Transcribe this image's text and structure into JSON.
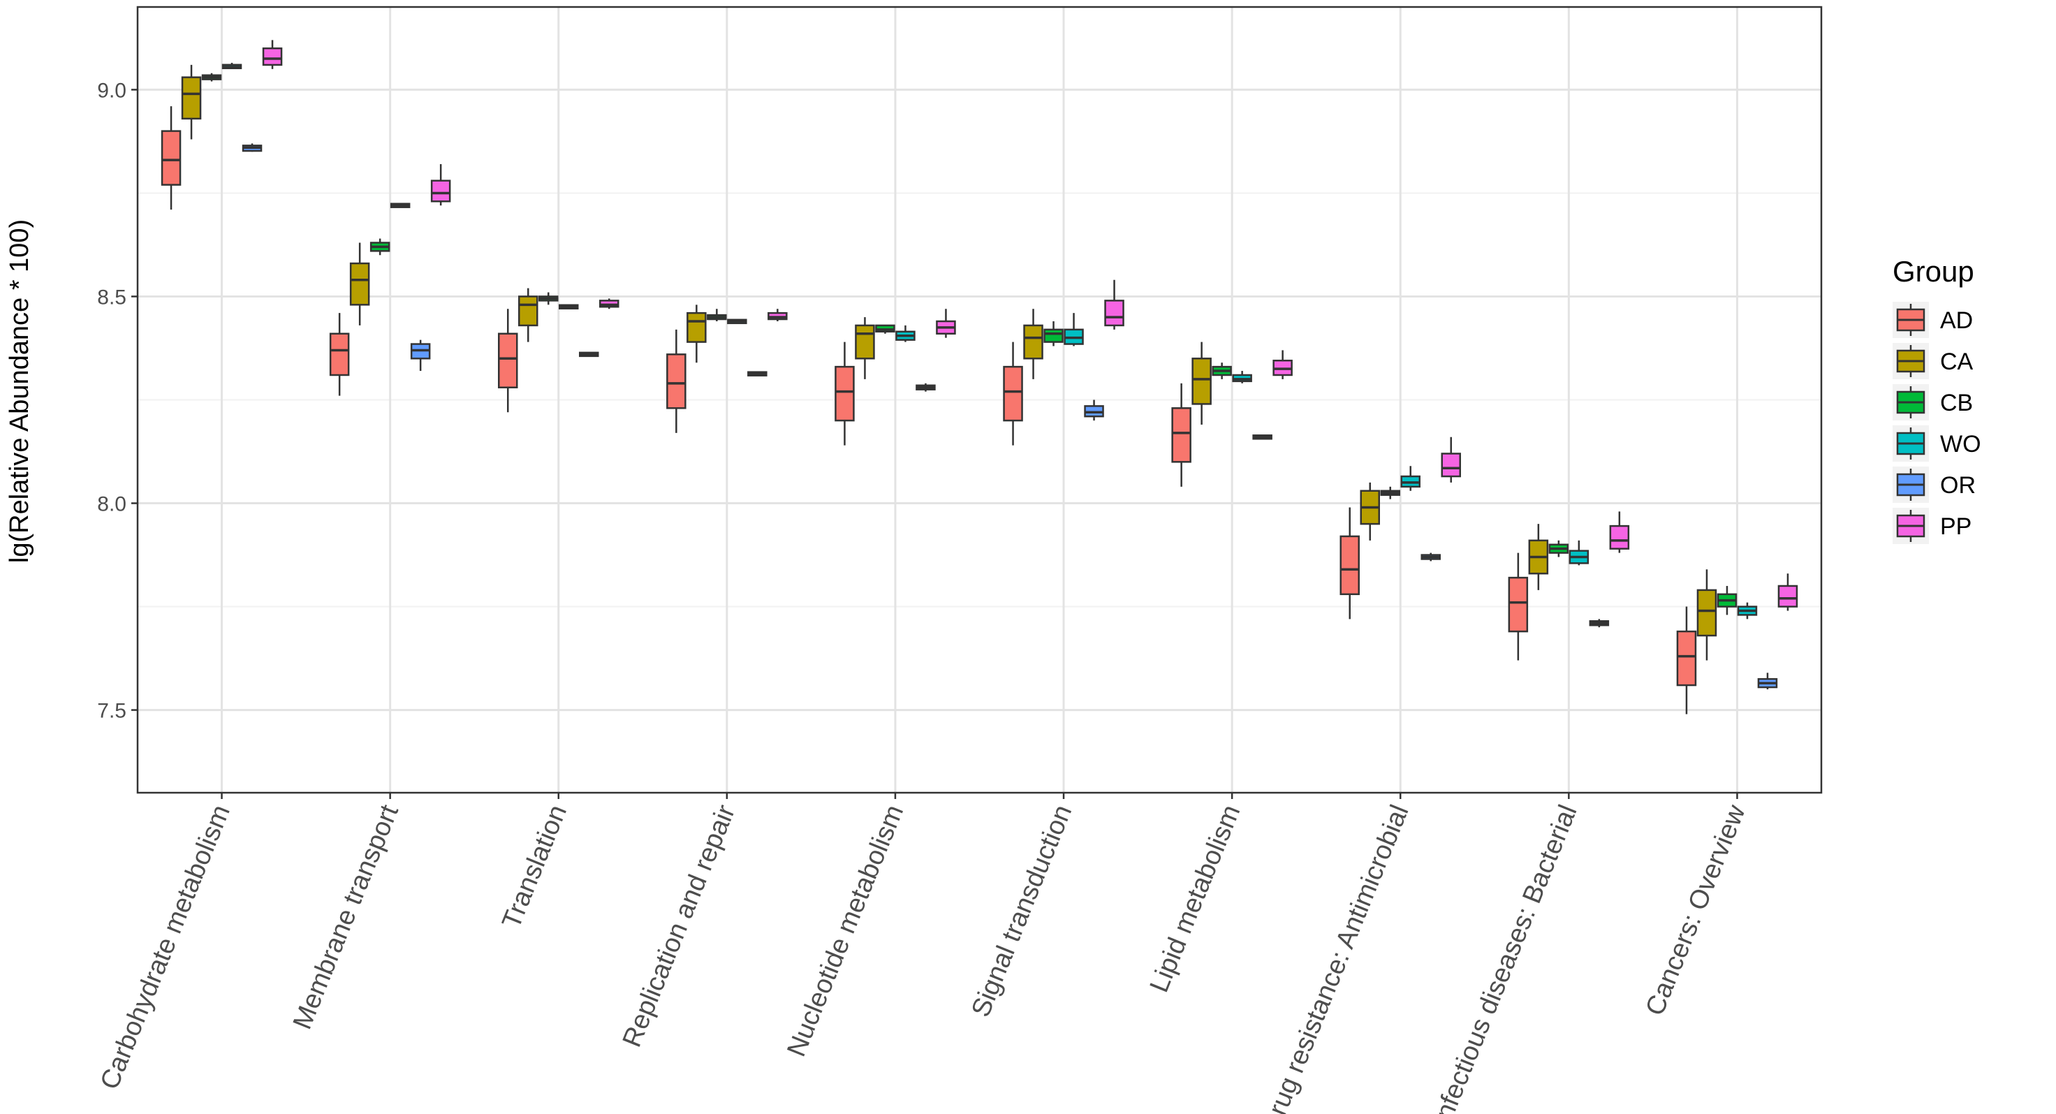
{
  "chart_data": {
    "type": "boxplot",
    "title": "",
    "xlabel": "",
    "ylabel": "lg(Relative Abundance * 100)",
    "ylim": [
      7.3,
      9.2
    ],
    "yticks": [
      7.5,
      8.0,
      8.5,
      9.0
    ],
    "ytick_labels": [
      "7.5",
      "8.0",
      "8.5",
      "9.0"
    ],
    "grid": true,
    "legend": {
      "title": "Group",
      "position": "right"
    },
    "groups": [
      {
        "name": "AD",
        "color": "#F8766D"
      },
      {
        "name": "CA",
        "color": "#B79F00"
      },
      {
        "name": "CB",
        "color": "#00BA38"
      },
      {
        "name": "WO",
        "color": "#00BFC4"
      },
      {
        "name": "OR",
        "color": "#619CFF"
      },
      {
        "name": "PP",
        "color": "#F564E3"
      }
    ],
    "categories": [
      "Carbohydrate metabolism",
      "Membrane transport",
      "Translation",
      "Replication and repair",
      "Nucleotide metabolism",
      "Signal transduction",
      "Lipid metabolism",
      "Drug resistance: Antimicrobial",
      "Infectious diseases: Bacterial",
      "Cancers: Overview"
    ],
    "series": [
      {
        "name": "AD",
        "stats": [
          [
            8.71,
            8.77,
            8.83,
            8.9,
            8.96
          ],
          [
            8.26,
            8.31,
            8.37,
            8.41,
            8.46
          ],
          [
            8.22,
            8.28,
            8.35,
            8.41,
            8.47
          ],
          [
            8.17,
            8.23,
            8.29,
            8.36,
            8.42
          ],
          [
            8.14,
            8.2,
            8.27,
            8.33,
            8.39
          ],
          [
            8.14,
            8.2,
            8.27,
            8.33,
            8.39
          ],
          [
            8.04,
            8.1,
            8.17,
            8.23,
            8.29
          ],
          [
            7.72,
            7.78,
            7.84,
            7.92,
            7.99
          ],
          [
            7.62,
            7.69,
            7.76,
            7.82,
            7.88
          ],
          [
            7.49,
            7.56,
            7.63,
            7.69,
            7.75
          ]
        ]
      },
      {
        "name": "CA",
        "stats": [
          [
            8.88,
            8.93,
            8.99,
            9.03,
            9.06
          ],
          [
            8.43,
            8.48,
            8.54,
            8.58,
            8.63
          ],
          [
            8.39,
            8.43,
            8.48,
            8.5,
            8.52
          ],
          [
            8.34,
            8.39,
            8.44,
            8.46,
            8.48
          ],
          [
            8.3,
            8.35,
            8.41,
            8.43,
            8.45
          ],
          [
            8.3,
            8.35,
            8.4,
            8.43,
            8.47
          ],
          [
            8.19,
            8.24,
            8.3,
            8.35,
            8.39
          ],
          [
            7.91,
            7.95,
            7.99,
            8.03,
            8.05
          ],
          [
            7.79,
            7.83,
            7.87,
            7.91,
            7.95
          ],
          [
            7.62,
            7.68,
            7.74,
            7.79,
            7.84
          ]
        ]
      },
      {
        "name": "CB",
        "stats": [
          [
            9.02,
            9.025,
            9.03,
            9.035,
            9.04
          ],
          [
            8.6,
            8.61,
            8.62,
            8.63,
            8.64
          ],
          [
            8.48,
            8.49,
            8.495,
            8.5,
            8.51
          ],
          [
            8.44,
            8.445,
            8.45,
            8.455,
            8.47
          ],
          [
            8.41,
            8.415,
            8.42,
            8.43,
            8.43
          ],
          [
            8.38,
            8.39,
            8.41,
            8.42,
            8.44
          ],
          [
            8.3,
            8.31,
            8.32,
            8.33,
            8.34
          ],
          [
            8.01,
            8.02,
            8.025,
            8.03,
            8.04
          ],
          [
            7.87,
            7.88,
            7.89,
            7.9,
            7.91
          ],
          [
            7.73,
            7.75,
            7.765,
            7.78,
            7.8
          ]
        ]
      },
      {
        "name": "WO",
        "stats": [
          [
            9.05,
            9.052,
            9.055,
            9.06,
            9.065
          ],
          [
            8.715,
            8.718,
            8.72,
            8.722,
            8.725
          ],
          [
            8.47,
            8.472,
            8.475,
            8.478,
            8.48
          ],
          [
            8.435,
            8.437,
            8.44,
            8.442,
            8.445
          ],
          [
            8.39,
            8.395,
            8.405,
            8.415,
            8.43
          ],
          [
            8.38,
            8.385,
            8.4,
            8.42,
            8.46
          ],
          [
            8.29,
            8.295,
            8.3,
            8.31,
            8.32
          ],
          [
            8.03,
            8.04,
            8.05,
            8.065,
            8.09
          ],
          [
            7.85,
            7.855,
            7.87,
            7.885,
            7.91
          ],
          [
            7.72,
            7.73,
            7.74,
            7.75,
            7.76
          ]
        ]
      },
      {
        "name": "OR",
        "stats": [
          [
            8.85,
            8.852,
            8.86,
            8.865,
            8.87
          ],
          [
            8.32,
            8.35,
            8.37,
            8.385,
            8.395
          ],
          [
            8.358,
            8.359,
            8.36,
            8.361,
            8.362
          ],
          [
            8.31,
            8.311,
            8.313,
            8.315,
            8.317
          ],
          [
            8.27,
            8.275,
            8.28,
            8.285,
            8.29
          ],
          [
            8.2,
            8.21,
            8.22,
            8.235,
            8.25
          ],
          [
            8.158,
            8.159,
            8.16,
            8.161,
            8.162
          ],
          [
            7.86,
            7.865,
            7.87,
            7.875,
            7.88
          ],
          [
            7.7,
            7.705,
            7.71,
            7.715,
            7.72
          ],
          [
            7.55,
            7.555,
            7.565,
            7.575,
            7.59
          ]
        ]
      },
      {
        "name": "PP",
        "stats": [
          [
            9.05,
            9.06,
            9.075,
            9.1,
            9.12
          ],
          [
            8.72,
            8.73,
            8.75,
            8.78,
            8.82
          ],
          [
            8.47,
            8.475,
            8.48,
            8.49,
            8.495
          ],
          [
            8.44,
            8.445,
            8.45,
            8.46,
            8.47
          ],
          [
            8.4,
            8.41,
            8.425,
            8.44,
            8.47
          ],
          [
            8.42,
            8.43,
            8.45,
            8.49,
            8.54
          ],
          [
            8.3,
            8.31,
            8.325,
            8.345,
            8.37
          ],
          [
            8.05,
            8.065,
            8.085,
            8.12,
            8.16
          ],
          [
            7.88,
            7.89,
            7.91,
            7.945,
            7.98
          ],
          [
            7.74,
            7.75,
            7.77,
            7.8,
            7.83
          ]
        ]
      }
    ]
  }
}
